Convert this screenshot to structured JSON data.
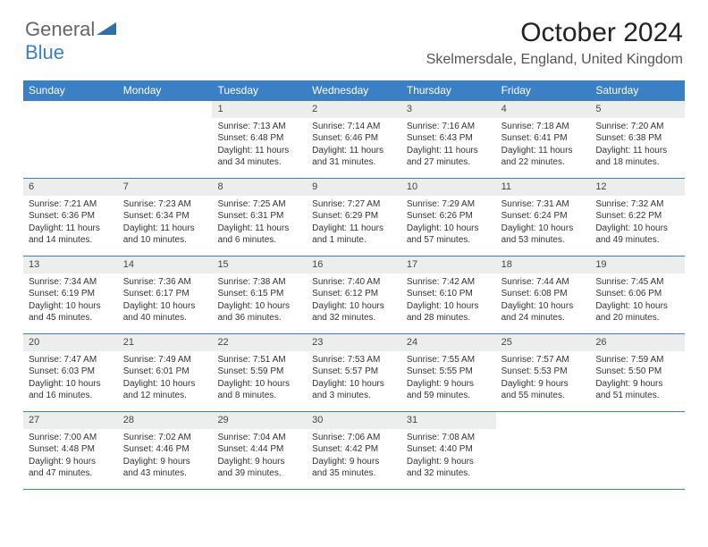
{
  "logo": {
    "text1": "General",
    "text2": "Blue"
  },
  "title": "October 2024",
  "location": "Skelmersdale, England, United Kingdom",
  "colors": {
    "header_bar": "#3b7fc4",
    "day_number_bg": "#eceded",
    "text": "#333333",
    "rule": "#3b7fc4"
  },
  "weekdays": [
    "Sunday",
    "Monday",
    "Tuesday",
    "Wednesday",
    "Thursday",
    "Friday",
    "Saturday"
  ],
  "weeks": [
    [
      {
        "empty": true
      },
      {
        "empty": true
      },
      {
        "n": "1",
        "sunrise": "Sunrise: 7:13 AM",
        "sunset": "Sunset: 6:48 PM",
        "daylight": "Daylight: 11 hours and 34 minutes."
      },
      {
        "n": "2",
        "sunrise": "Sunrise: 7:14 AM",
        "sunset": "Sunset: 6:46 PM",
        "daylight": "Daylight: 11 hours and 31 minutes."
      },
      {
        "n": "3",
        "sunrise": "Sunrise: 7:16 AM",
        "sunset": "Sunset: 6:43 PM",
        "daylight": "Daylight: 11 hours and 27 minutes."
      },
      {
        "n": "4",
        "sunrise": "Sunrise: 7:18 AM",
        "sunset": "Sunset: 6:41 PM",
        "daylight": "Daylight: 11 hours and 22 minutes."
      },
      {
        "n": "5",
        "sunrise": "Sunrise: 7:20 AM",
        "sunset": "Sunset: 6:38 PM",
        "daylight": "Daylight: 11 hours and 18 minutes."
      }
    ],
    [
      {
        "n": "6",
        "sunrise": "Sunrise: 7:21 AM",
        "sunset": "Sunset: 6:36 PM",
        "daylight": "Daylight: 11 hours and 14 minutes."
      },
      {
        "n": "7",
        "sunrise": "Sunrise: 7:23 AM",
        "sunset": "Sunset: 6:34 PM",
        "daylight": "Daylight: 11 hours and 10 minutes."
      },
      {
        "n": "8",
        "sunrise": "Sunrise: 7:25 AM",
        "sunset": "Sunset: 6:31 PM",
        "daylight": "Daylight: 11 hours and 6 minutes."
      },
      {
        "n": "9",
        "sunrise": "Sunrise: 7:27 AM",
        "sunset": "Sunset: 6:29 PM",
        "daylight": "Daylight: 11 hours and 1 minute."
      },
      {
        "n": "10",
        "sunrise": "Sunrise: 7:29 AM",
        "sunset": "Sunset: 6:26 PM",
        "daylight": "Daylight: 10 hours and 57 minutes."
      },
      {
        "n": "11",
        "sunrise": "Sunrise: 7:31 AM",
        "sunset": "Sunset: 6:24 PM",
        "daylight": "Daylight: 10 hours and 53 minutes."
      },
      {
        "n": "12",
        "sunrise": "Sunrise: 7:32 AM",
        "sunset": "Sunset: 6:22 PM",
        "daylight": "Daylight: 10 hours and 49 minutes."
      }
    ],
    [
      {
        "n": "13",
        "sunrise": "Sunrise: 7:34 AM",
        "sunset": "Sunset: 6:19 PM",
        "daylight": "Daylight: 10 hours and 45 minutes."
      },
      {
        "n": "14",
        "sunrise": "Sunrise: 7:36 AM",
        "sunset": "Sunset: 6:17 PM",
        "daylight": "Daylight: 10 hours and 40 minutes."
      },
      {
        "n": "15",
        "sunrise": "Sunrise: 7:38 AM",
        "sunset": "Sunset: 6:15 PM",
        "daylight": "Daylight: 10 hours and 36 minutes."
      },
      {
        "n": "16",
        "sunrise": "Sunrise: 7:40 AM",
        "sunset": "Sunset: 6:12 PM",
        "daylight": "Daylight: 10 hours and 32 minutes."
      },
      {
        "n": "17",
        "sunrise": "Sunrise: 7:42 AM",
        "sunset": "Sunset: 6:10 PM",
        "daylight": "Daylight: 10 hours and 28 minutes."
      },
      {
        "n": "18",
        "sunrise": "Sunrise: 7:44 AM",
        "sunset": "Sunset: 6:08 PM",
        "daylight": "Daylight: 10 hours and 24 minutes."
      },
      {
        "n": "19",
        "sunrise": "Sunrise: 7:45 AM",
        "sunset": "Sunset: 6:06 PM",
        "daylight": "Daylight: 10 hours and 20 minutes."
      }
    ],
    [
      {
        "n": "20",
        "sunrise": "Sunrise: 7:47 AM",
        "sunset": "Sunset: 6:03 PM",
        "daylight": "Daylight: 10 hours and 16 minutes."
      },
      {
        "n": "21",
        "sunrise": "Sunrise: 7:49 AM",
        "sunset": "Sunset: 6:01 PM",
        "daylight": "Daylight: 10 hours and 12 minutes."
      },
      {
        "n": "22",
        "sunrise": "Sunrise: 7:51 AM",
        "sunset": "Sunset: 5:59 PM",
        "daylight": "Daylight: 10 hours and 8 minutes."
      },
      {
        "n": "23",
        "sunrise": "Sunrise: 7:53 AM",
        "sunset": "Sunset: 5:57 PM",
        "daylight": "Daylight: 10 hours and 3 minutes."
      },
      {
        "n": "24",
        "sunrise": "Sunrise: 7:55 AM",
        "sunset": "Sunset: 5:55 PM",
        "daylight": "Daylight: 9 hours and 59 minutes."
      },
      {
        "n": "25",
        "sunrise": "Sunrise: 7:57 AM",
        "sunset": "Sunset: 5:53 PM",
        "daylight": "Daylight: 9 hours and 55 minutes."
      },
      {
        "n": "26",
        "sunrise": "Sunrise: 7:59 AM",
        "sunset": "Sunset: 5:50 PM",
        "daylight": "Daylight: 9 hours and 51 minutes."
      }
    ],
    [
      {
        "n": "27",
        "sunrise": "Sunrise: 7:00 AM",
        "sunset": "Sunset: 4:48 PM",
        "daylight": "Daylight: 9 hours and 47 minutes."
      },
      {
        "n": "28",
        "sunrise": "Sunrise: 7:02 AM",
        "sunset": "Sunset: 4:46 PM",
        "daylight": "Daylight: 9 hours and 43 minutes."
      },
      {
        "n": "29",
        "sunrise": "Sunrise: 7:04 AM",
        "sunset": "Sunset: 4:44 PM",
        "daylight": "Daylight: 9 hours and 39 minutes."
      },
      {
        "n": "30",
        "sunrise": "Sunrise: 7:06 AM",
        "sunset": "Sunset: 4:42 PM",
        "daylight": "Daylight: 9 hours and 35 minutes."
      },
      {
        "n": "31",
        "sunrise": "Sunrise: 7:08 AM",
        "sunset": "Sunset: 4:40 PM",
        "daylight": "Daylight: 9 hours and 32 minutes."
      },
      {
        "empty": true
      },
      {
        "empty": true
      }
    ]
  ]
}
